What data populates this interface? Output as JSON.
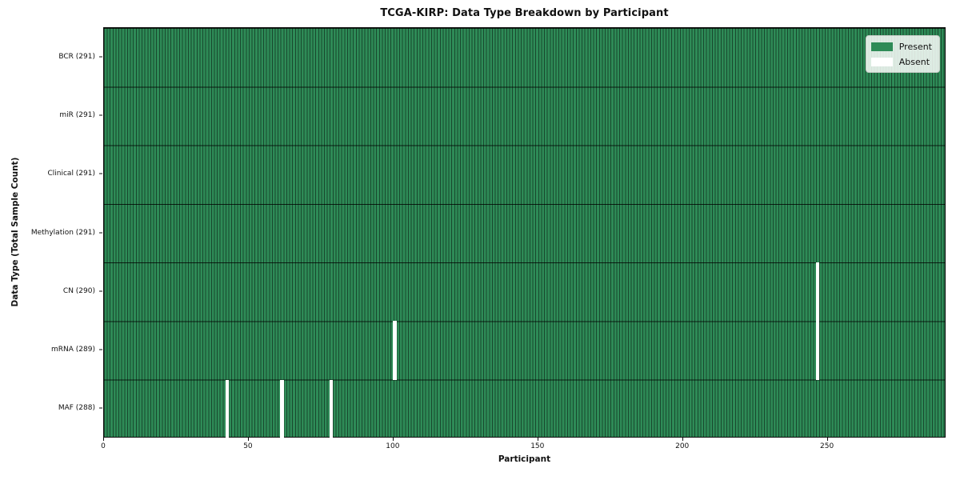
{
  "title": "TCGA-KIRP: Data Type Breakdown by Participant",
  "axes": {
    "xlabel": "Participant",
    "ylabel": "Data Type (Total Sample Count)"
  },
  "legend": {
    "entries": [
      {
        "label": "Present",
        "color": "#2e8b57"
      },
      {
        "label": "Absent",
        "color": "#ffffff"
      }
    ]
  },
  "chart_data": {
    "type": "heatmap",
    "title": "TCGA-KIRP: Data Type Breakdown by Participant",
    "xlabel": "Participant",
    "ylabel": "Data Type (Total Sample Count)",
    "x_range": [
      0,
      291
    ],
    "x_ticks": [
      0,
      50,
      100,
      150,
      200,
      250
    ],
    "n_participants": 291,
    "grid": false,
    "legend_position": "upper right",
    "rows": [
      {
        "label": "BCR (291)",
        "name": "BCR",
        "total": 291,
        "absent_participants": []
      },
      {
        "label": "miR (291)",
        "name": "miR",
        "total": 291,
        "absent_participants": []
      },
      {
        "label": "Clinical (291)",
        "name": "Clinical",
        "total": 291,
        "absent_participants": []
      },
      {
        "label": "Methylation (291)",
        "name": "Methylation",
        "total": 291,
        "absent_participants": []
      },
      {
        "label": "CN (290)",
        "name": "CN",
        "total": 290,
        "absent_participants": [
          246
        ]
      },
      {
        "label": "mRNA (289)",
        "name": "mRNA",
        "total": 289,
        "absent_participants": [
          100,
          246
        ]
      },
      {
        "label": "MAF (288)",
        "name": "MAF",
        "total": 288,
        "absent_participants": [
          42,
          61,
          78
        ]
      }
    ],
    "colors": {
      "present": "#2e8b57",
      "absent": "#ffffff",
      "cell_edge": "rgba(0,0,0,0.48)",
      "row_divider": "rgba(0,0,0,0.78)",
      "spine": "#0d0d0d"
    }
  }
}
